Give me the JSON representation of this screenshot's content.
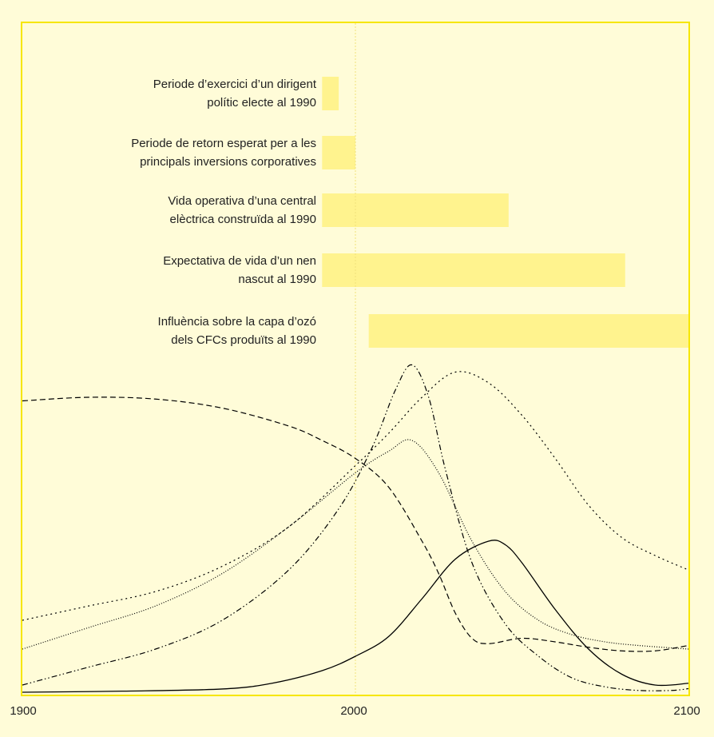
{
  "colors": {
    "background": "#fffcd8",
    "frame": "#f6e600",
    "bar": "#fff38e",
    "reference_line": "#f1e27a",
    "curve": "#000000"
  },
  "chart_data": [
    {
      "type": "bar",
      "orientation": "horizontal",
      "xlim": [
        1900,
        2100
      ],
      "categories": [
        "Periode d’exercici d’un dirigent|polític electe al 1990",
        "Periode de retorn esperat per a les|principals inversions corporatives",
        "Vida operativa d’una central|elèctrica construïda al 1990",
        "Expectativa de vida d’un nen|nascut al 1990",
        "Influència sobre la capa d’ozó|dels CFCs produïts al 1990"
      ],
      "bars": [
        {
          "start": 1990,
          "end": 1995
        },
        {
          "start": 1990,
          "end": 2000
        },
        {
          "start": 1990,
          "end": 2046
        },
        {
          "start": 1990,
          "end": 2081
        },
        {
          "start": 2004,
          "end": 2100
        }
      ],
      "reference_x": 2000
    },
    {
      "type": "line",
      "xlim": [
        1900,
        2100
      ],
      "x_ticks": [
        "1900",
        "2000",
        "2100"
      ],
      "ylim": [
        0,
        100
      ],
      "series": [
        {
          "style": "solid",
          "x": [
            1900,
            1930,
            1960,
            1975,
            1990,
            2000,
            2010,
            2020,
            2030,
            2040,
            2045,
            2050,
            2060,
            2070,
            2080,
            2090,
            2100
          ],
          "y": [
            0,
            0.3,
            0.9,
            2.5,
            6,
            10,
            15.5,
            26,
            37,
            42,
            41,
            36,
            23,
            12,
            5,
            2,
            2.5
          ]
        },
        {
          "style": "dashed",
          "x": [
            1900,
            1920,
            1940,
            1960,
            1980,
            1990,
            2000,
            2010,
            2020,
            2025,
            2030,
            2035,
            2040,
            2050,
            2060,
            2070,
            2080,
            2090,
            2100
          ],
          "y": [
            81,
            82,
            81.5,
            79,
            74,
            70,
            65,
            57,
            42,
            33,
            22,
            15,
            13.5,
            15,
            14,
            12.5,
            11.5,
            11.5,
            13
          ]
        },
        {
          "style": "dotted",
          "x": [
            1900,
            1920,
            1940,
            1960,
            1980,
            2000,
            2010,
            2020,
            2030,
            2040,
            2050,
            2060,
            2070,
            2080,
            2090,
            2100
          ],
          "y": [
            20,
            24,
            28,
            35,
            46,
            63,
            72,
            82,
            89,
            86,
            77,
            65,
            52,
            43,
            38,
            34
          ]
        },
        {
          "style": "fine-dotted",
          "x": [
            1900,
            1920,
            1940,
            1960,
            1980,
            2000,
            2010,
            2017,
            2025,
            2035,
            2045,
            2055,
            2065,
            2075,
            2085,
            2100
          ],
          "y": [
            12,
            18,
            24,
            33,
            46,
            61,
            67,
            70,
            61,
            42,
            28,
            20,
            16,
            14,
            13,
            12
          ]
        },
        {
          "style": "dash-dot-dot",
          "x": [
            1900,
            1920,
            1940,
            1960,
            1980,
            1995,
            2005,
            2012,
            2017,
            2022,
            2027,
            2035,
            2045,
            2055,
            2065,
            2075,
            2085,
            2095,
            2100
          ],
          "y": [
            2,
            7,
            12,
            20,
            34,
            51,
            68,
            84,
            91,
            82,
            62,
            36,
            19,
            10,
            4,
            1.5,
            0.5,
            0.5,
            1
          ]
        }
      ]
    }
  ]
}
